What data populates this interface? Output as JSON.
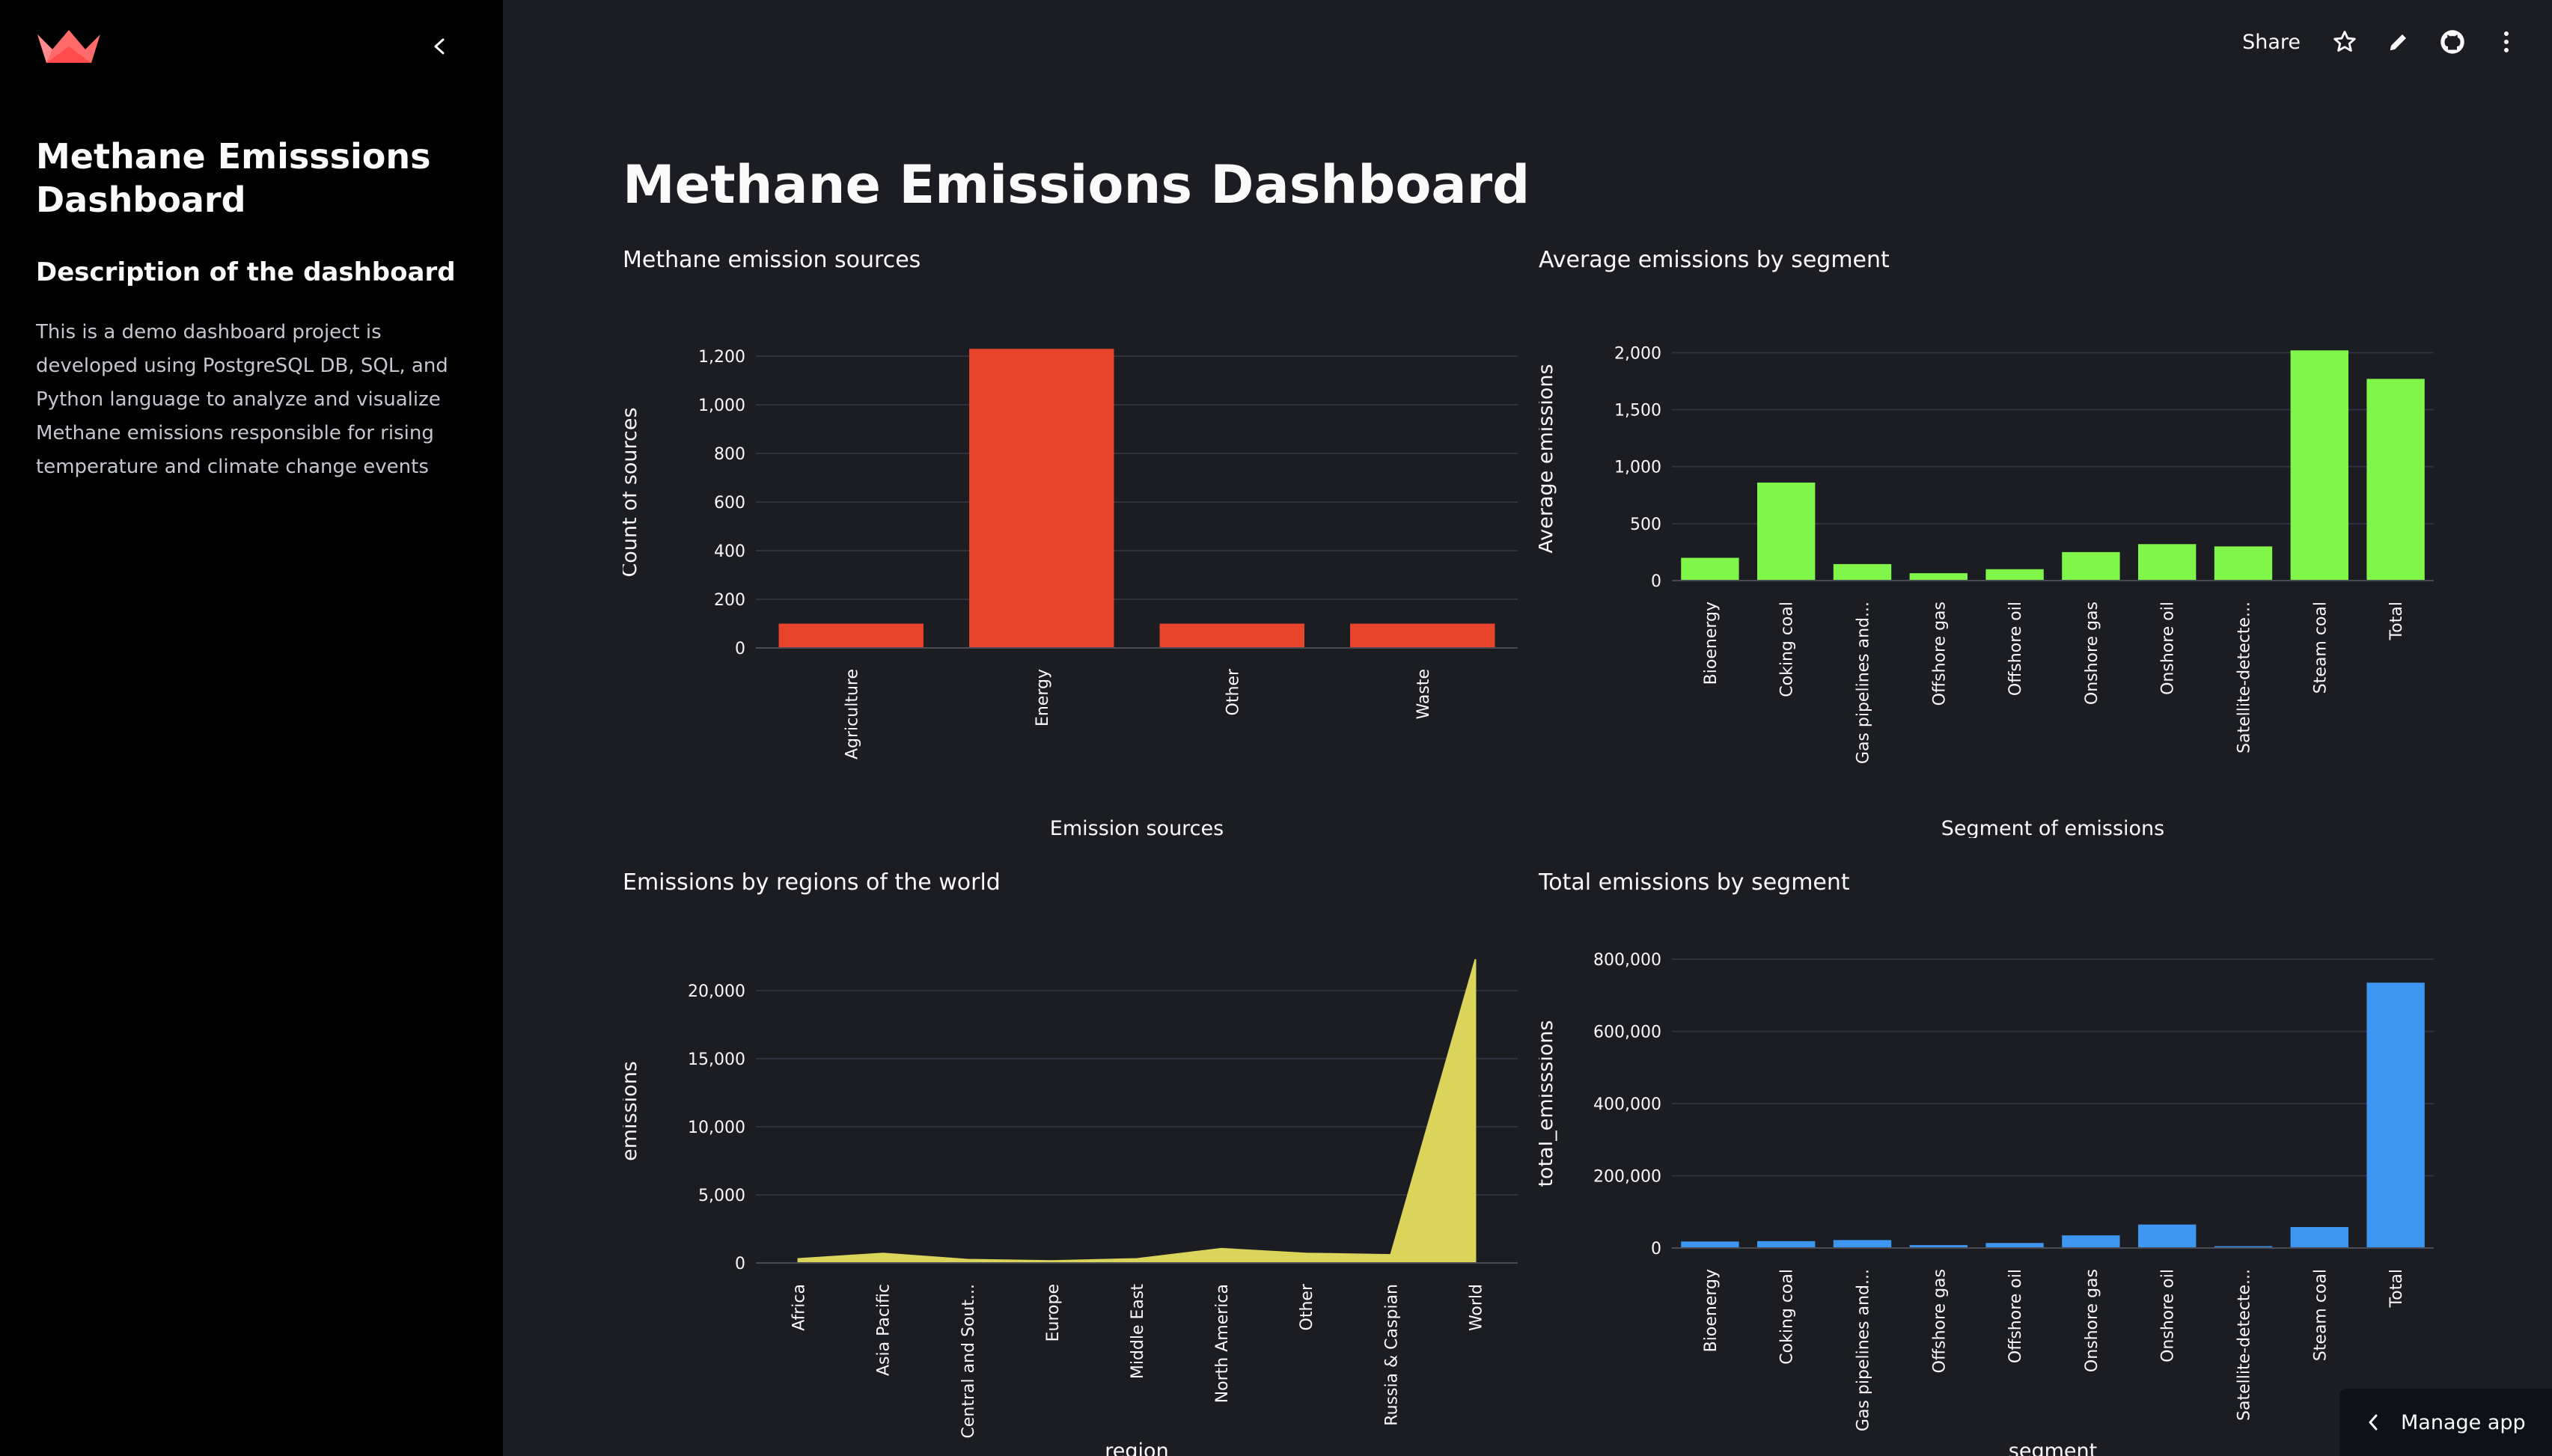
{
  "sidebar": {
    "title": "Methane Emisssions Dashboard",
    "subtitle": "Description of the dashboard",
    "description": "This is a demo dashboard project is developed using PostgreSQL DB, SQL, and Python language to analyze and visualize Methane emissions responsible for rising temperature and climate change events"
  },
  "toolbar": {
    "share_label": "Share"
  },
  "page": {
    "title": "Methane Emissions Dashboard"
  },
  "manage_app": {
    "label": "Manage app"
  },
  "colors": {
    "red": "#e8442b",
    "green": "#80f64b",
    "yellow": "#dbd45a",
    "blue": "#3d97f0"
  },
  "chart_data": [
    {
      "id": "sources",
      "type": "bar",
      "title": "Methane emission sources",
      "xlabel": "Emission sources",
      "ylabel": "Count of sources",
      "categories": [
        "Agriculture",
        "Energy",
        "Other",
        "Waste"
      ],
      "values": [
        100,
        1230,
        100,
        100
      ],
      "yticks": [
        0,
        200,
        400,
        600,
        800,
        1000,
        1200
      ],
      "ytick_labels": [
        "0",
        "200",
        "400",
        "600",
        "800",
        "1,000",
        "1,200"
      ],
      "ylim": [
        0,
        1280
      ],
      "color": "#e8442b"
    },
    {
      "id": "avg_segment",
      "type": "bar",
      "title": "Average emissions by segment",
      "xlabel": "Segment of emissions",
      "ylabel": "Average emissions",
      "categories": [
        "Bioenergy",
        "Coking coal",
        "Gas pipelines and...",
        "Offshore gas",
        "Offshore oil",
        "Onshore gas",
        "Onshore oil",
        "Satellite-detecte...",
        "Steam coal",
        "Total"
      ],
      "values": [
        200,
        860,
        145,
        65,
        100,
        250,
        320,
        300,
        2020,
        1770
      ],
      "yticks": [
        0,
        500,
        1000,
        1500,
        2000
      ],
      "ytick_labels": [
        "0",
        "500",
        "1,000",
        "1,500",
        "2,000"
      ],
      "ylim": [
        0,
        2140
      ],
      "color": "#80f64b"
    },
    {
      "id": "regions",
      "type": "area",
      "title": "Emissions by regions of the world",
      "xlabel": "region",
      "ylabel": "emissions",
      "categories": [
        "Africa",
        "Asia Pacific",
        "Central and Sout...",
        "Europe",
        "Middle East",
        "North America",
        "Other",
        "Russia & Caspian",
        "World"
      ],
      "values": [
        300,
        700,
        250,
        150,
        300,
        1050,
        700,
        600,
        22300
      ],
      "yticks": [
        0,
        5000,
        10000,
        15000,
        20000
      ],
      "ytick_labels": [
        "0",
        "5,000",
        "10,000",
        "15,000",
        "20,000"
      ],
      "ylim": [
        0,
        22300
      ],
      "color": "#dbd45a"
    },
    {
      "id": "total_segment",
      "type": "bar",
      "title": "Total emissions by segment",
      "xlabel": "segment",
      "ylabel": "total_emisssions",
      "categories": [
        "Bioenergy",
        "Coking coal",
        "Gas pipelines and...",
        "Offshore gas",
        "Offshore oil",
        "Onshore gas",
        "Onshore oil",
        "Satellite-detecte...",
        "Steam coal",
        "Total"
      ],
      "values": [
        18000,
        19000,
        22000,
        8000,
        14000,
        35000,
        65000,
        5000,
        58000,
        735000
      ],
      "yticks": [
        0,
        200000,
        400000,
        600000,
        800000
      ],
      "ytick_labels": [
        "0",
        "200,000",
        "400,000",
        "600,000",
        "800,000"
      ],
      "ylim": [
        0,
        800000
      ],
      "color": "#3d97f0"
    }
  ]
}
